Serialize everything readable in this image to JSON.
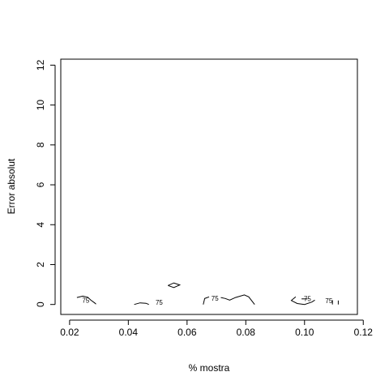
{
  "chart_data": {
    "type": "contour",
    "title": "",
    "xlabel": "% mostra",
    "ylabel": "Error absolut",
    "xlim": [
      0.017,
      0.118
    ],
    "ylim": [
      -0.5,
      12.3
    ],
    "xticks": [
      0.02,
      0.04,
      0.06,
      0.08,
      0.1,
      0.12
    ],
    "xtick_labels": [
      "0.02",
      "0.04",
      "0.06",
      "0.08",
      "0.10",
      "0.12"
    ],
    "yticks": [
      0,
      2,
      4,
      6,
      8,
      10,
      12
    ],
    "ytick_labels": [
      "0",
      "2",
      "4",
      "6",
      "8",
      "10",
      "12"
    ],
    "grid": false,
    "line_color": "#000000",
    "contour_level_label": "75",
    "contours": [
      {
        "points": [
          [
            0.0225,
            0.35
          ],
          [
            0.0245,
            0.42
          ],
          [
            0.0262,
            0.36
          ],
          [
            0.0272,
            0.22
          ],
          [
            0.0285,
            0.08
          ],
          [
            0.029,
            0.02
          ]
        ]
      },
      {
        "points": [
          [
            0.042,
            0.0
          ],
          [
            0.044,
            0.08
          ],
          [
            0.046,
            0.06
          ],
          [
            0.047,
            0.0
          ]
        ]
      },
      {
        "points": [
          [
            0.0535,
            0.95
          ],
          [
            0.0555,
            1.08
          ],
          [
            0.0575,
            0.98
          ],
          [
            0.0555,
            0.85
          ],
          [
            0.0535,
            0.95
          ]
        ]
      },
      {
        "points": [
          [
            0.0655,
            0.0
          ],
          [
            0.066,
            0.3
          ],
          [
            0.0675,
            0.38
          ]
        ]
      },
      {
        "points": [
          [
            0.0715,
            0.35
          ],
          [
            0.073,
            0.3
          ],
          [
            0.0745,
            0.22
          ],
          [
            0.0765,
            0.35
          ],
          [
            0.0795,
            0.48
          ],
          [
            0.081,
            0.38
          ],
          [
            0.083,
            0.0
          ]
        ]
      },
      {
        "points": [
          [
            0.097,
            0.38
          ],
          [
            0.0955,
            0.2
          ],
          [
            0.0975,
            0.05
          ],
          [
            0.1,
            0.0
          ],
          [
            0.1025,
            0.12
          ],
          [
            0.1035,
            0.22
          ]
        ]
      },
      {
        "points": [
          [
            0.099,
            0.28
          ],
          [
            0.101,
            0.28
          ]
        ]
      },
      {
        "points": [
          [
            0.1095,
            0.0
          ],
          [
            0.1095,
            0.22
          ]
        ]
      },
      {
        "points": [
          [
            0.1115,
            0.0
          ],
          [
            0.1115,
            0.2
          ]
        ]
      }
    ],
    "contour_labels": [
      {
        "text": "75",
        "x": 0.0255,
        "y": 0.22
      },
      {
        "text": "75",
        "x": 0.0505,
        "y": 0.1
      },
      {
        "text": "75",
        "x": 0.0695,
        "y": 0.32
      },
      {
        "text": "75",
        "x": 0.101,
        "y": 0.3
      },
      {
        "text": "75",
        "x": 0.1083,
        "y": 0.2
      }
    ]
  }
}
